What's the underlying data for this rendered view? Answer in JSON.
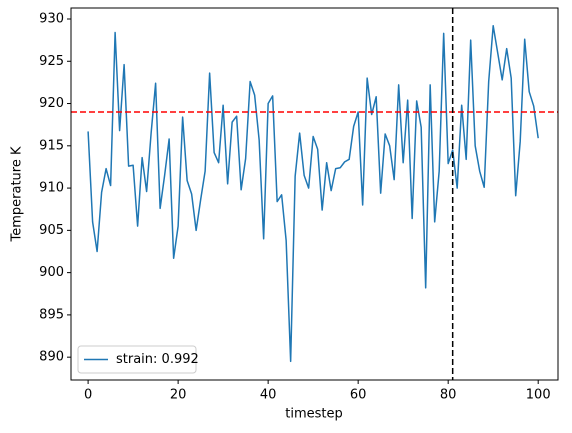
{
  "chart_data": {
    "type": "line",
    "xlabel": "timestep",
    "ylabel": "Temperature K",
    "x": [
      0,
      1,
      2,
      3,
      4,
      5,
      6,
      7,
      8,
      9,
      10,
      11,
      12,
      13,
      14,
      15,
      16,
      17,
      18,
      19,
      20,
      21,
      22,
      23,
      24,
      25,
      26,
      27,
      28,
      29,
      30,
      31,
      32,
      33,
      34,
      35,
      36,
      37,
      38,
      39,
      40,
      41,
      42,
      43,
      44,
      45,
      46,
      47,
      48,
      49,
      50,
      51,
      52,
      53,
      54,
      55,
      56,
      57,
      58,
      59,
      60,
      61,
      62,
      63,
      64,
      65,
      66,
      67,
      68,
      69,
      70,
      71,
      72,
      73,
      74,
      75,
      76,
      77,
      78,
      79,
      80,
      81,
      82,
      83,
      84,
      85,
      86,
      87,
      88,
      89,
      90,
      91,
      92,
      93,
      94,
      95,
      96,
      97,
      98,
      99,
      100
    ],
    "series": [
      {
        "name": "strain: 0.992",
        "color": "#1f77b4",
        "values": [
          916.7,
          906,
          902.5,
          909.5,
          912.3,
          910.3,
          928.4,
          916.8,
          924.6,
          912.6,
          912.7,
          905.5,
          913.6,
          909.6,
          916.5,
          922.4,
          907.6,
          911.5,
          915.8,
          901.7,
          905.5,
          918.4,
          910.9,
          909.3,
          905,
          908.6,
          912,
          923.6,
          914.2,
          913,
          919.8,
          910.5,
          917.8,
          918.5,
          909.8,
          913.5,
          922.6,
          921,
          915.7,
          904,
          920,
          920.9,
          908.4,
          909.2,
          903.8,
          889.5,
          911.4,
          916.5,
          911.5,
          910,
          916.1,
          914.6,
          907.4,
          913,
          909.7,
          912.3,
          912.4,
          913.1,
          913.4,
          917.3,
          919,
          908,
          923,
          918.7,
          920.8,
          909.4,
          916.4,
          915,
          911,
          922.2,
          913,
          920.4,
          906.4,
          920.3,
          917.2,
          898.2,
          922.2,
          906,
          912,
          928.3,
          912.9,
          914.5,
          910,
          919.8,
          913.4,
          927.5,
          915,
          912,
          910.1,
          922.6,
          929.2,
          926,
          922.8,
          926.5,
          923,
          909.1,
          915.5,
          927.6,
          921.4,
          919.7,
          915.9
        ]
      }
    ],
    "hline": {
      "value": 919,
      "color": "#ff0000"
    },
    "vline": {
      "value": 81,
      "color": "#000000"
    },
    "xlim": [
      -3.8,
      104.4
    ],
    "ylim": [
      887.3,
      931.3
    ],
    "xticks": [
      0,
      20,
      40,
      60,
      80,
      100
    ],
    "yticks": [
      890,
      895,
      900,
      905,
      910,
      915,
      920,
      925,
      930
    ],
    "legend": "lower left",
    "grid": false
  }
}
